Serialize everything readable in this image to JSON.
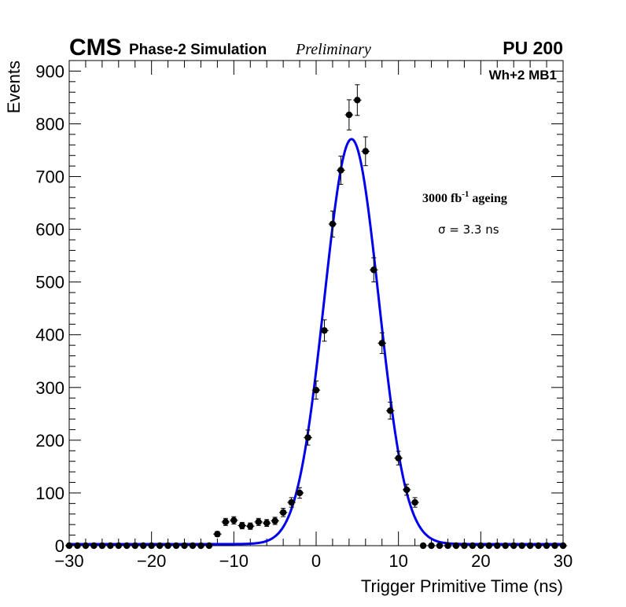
{
  "chart_data": {
    "type": "scatter",
    "title": "",
    "xlabel": "Trigger Primitive Time (ns)",
    "ylabel": "Events",
    "xlim": [
      -30,
      30
    ],
    "ylim": [
      0,
      920
    ],
    "x_ticks": [
      -30,
      -20,
      -10,
      0,
      10,
      20,
      30
    ],
    "x_tick_labels": [
      "−30",
      "−20",
      "−10",
      "0",
      "10",
      "20",
      "30"
    ],
    "y_ticks": [
      0,
      100,
      200,
      300,
      400,
      500,
      600,
      700,
      800,
      900
    ],
    "y_tick_labels": [
      "0",
      "100",
      "200",
      "300",
      "400",
      "500",
      "600",
      "700",
      "800",
      "900"
    ],
    "grid": false,
    "series": [
      {
        "name": "Simulation",
        "style": "markers-with-errors",
        "x": [
          -30,
          -29,
          -28,
          -27,
          -26,
          -25,
          -24,
          -23,
          -22,
          -21,
          -20,
          -19,
          -18,
          -17,
          -16,
          -15,
          -14,
          -13,
          -12,
          -11,
          -10,
          -9,
          -8,
          -7,
          -6,
          -5,
          -4,
          -3,
          -2,
          -1,
          0,
          1,
          2,
          3,
          4,
          5,
          6,
          7,
          8,
          9,
          10,
          11,
          12,
          13,
          14,
          15,
          16,
          17,
          18,
          19,
          20,
          21,
          22,
          23,
          24,
          25,
          26,
          27,
          28,
          29,
          30
        ],
        "y": [
          0,
          0,
          0,
          0,
          0,
          0,
          0,
          0,
          0,
          0,
          0,
          0,
          0,
          0,
          0,
          0,
          0,
          0,
          22,
          45,
          48,
          38,
          37,
          45,
          43,
          47,
          63,
          82,
          100,
          205,
          295,
          408,
          610,
          712,
          817,
          845,
          748,
          523,
          384,
          256,
          166,
          106,
          82,
          0,
          0,
          0,
          0,
          0,
          0,
          0,
          0,
          0,
          0,
          0,
          0,
          0,
          0,
          0,
          0,
          0,
          0
        ]
      },
      {
        "name": "Gaussian fit",
        "style": "line",
        "color": "#0000ee",
        "mean": 4.3,
        "sigma": 3.3,
        "amplitude": 768,
        "baseline": 3
      }
    ],
    "annotations": {
      "cms": "CMS",
      "phase": "Phase-2 Simulation",
      "preliminary": "Preliminary",
      "pileup": "PU 200",
      "sample": "Wh+2 MB1",
      "lumi_value": "3000 fb",
      "lumi_exponent": "-1",
      "lumi_suffix": " ageing",
      "sigma_label": "σ = 3.3 ns"
    }
  }
}
